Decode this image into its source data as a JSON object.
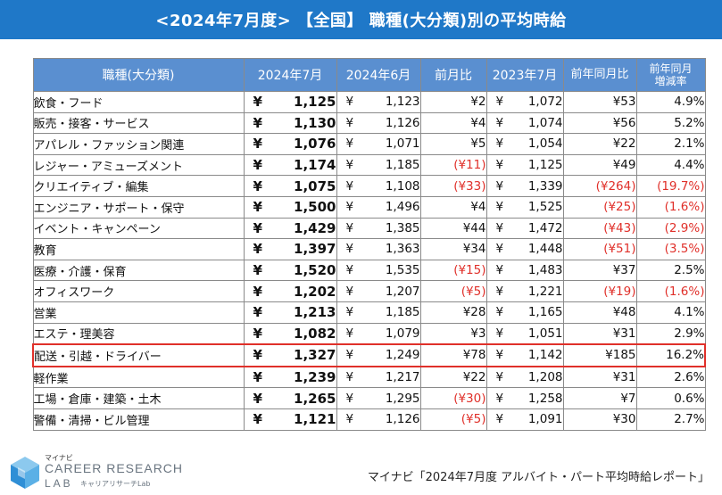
{
  "title": "<2024年7月度> 【全国】 職種(大分類)別の平均時給",
  "columns": [
    "職種(大分類)",
    "2024年7月",
    "2024年6月",
    "前月比",
    "2023年7月",
    "前年同月比",
    "前年同月増減率"
  ],
  "column_lines": {
    "rate_line1": "前年同月",
    "rate_line2": "増減率"
  },
  "currency_symbol": "¥",
  "rows": [
    {
      "name": "飲食・フード",
      "jul24": "1,125",
      "jun24": "1,123",
      "mom": "¥2",
      "mom_neg": false,
      "jul23": "1,072",
      "yoy": "¥53",
      "yoy_neg": false,
      "rate": "4.9%",
      "rate_neg": false
    },
    {
      "name": "販売・接客・サービス",
      "jul24": "1,130",
      "jun24": "1,126",
      "mom": "¥4",
      "mom_neg": false,
      "jul23": "1,074",
      "yoy": "¥56",
      "yoy_neg": false,
      "rate": "5.2%",
      "rate_neg": false
    },
    {
      "name": "アパレル・ファッション関連",
      "jul24": "1,076",
      "jun24": "1,071",
      "mom": "¥5",
      "mom_neg": false,
      "jul23": "1,054",
      "yoy": "¥22",
      "yoy_neg": false,
      "rate": "2.1%",
      "rate_neg": false
    },
    {
      "name": "レジャー・アミューズメント",
      "jul24": "1,174",
      "jun24": "1,185",
      "mom": "(¥11)",
      "mom_neg": true,
      "jul23": "1,125",
      "yoy": "¥49",
      "yoy_neg": false,
      "rate": "4.4%",
      "rate_neg": false
    },
    {
      "name": "クリエイティブ・編集",
      "jul24": "1,075",
      "jun24": "1,108",
      "mom": "(¥33)",
      "mom_neg": true,
      "jul23": "1,339",
      "yoy": "(¥264)",
      "yoy_neg": true,
      "rate": "(19.7%)",
      "rate_neg": true
    },
    {
      "name": "エンジニア・サポート・保守",
      "jul24": "1,500",
      "jun24": "1,496",
      "mom": "¥4",
      "mom_neg": false,
      "jul23": "1,525",
      "yoy": "(¥25)",
      "yoy_neg": true,
      "rate": "(1.6%)",
      "rate_neg": true
    },
    {
      "name": "イベント・キャンペーン",
      "jul24": "1,429",
      "jun24": "1,385",
      "mom": "¥44",
      "mom_neg": false,
      "jul23": "1,472",
      "yoy": "(¥43)",
      "yoy_neg": true,
      "rate": "(2.9%)",
      "rate_neg": true
    },
    {
      "name": "教育",
      "jul24": "1,397",
      "jun24": "1,363",
      "mom": "¥34",
      "mom_neg": false,
      "jul23": "1,448",
      "yoy": "(¥51)",
      "yoy_neg": true,
      "rate": "(3.5%)",
      "rate_neg": true
    },
    {
      "name": "医療・介護・保育",
      "jul24": "1,520",
      "jun24": "1,535",
      "mom": "(¥15)",
      "mom_neg": true,
      "jul23": "1,483",
      "yoy": "¥37",
      "yoy_neg": false,
      "rate": "2.5%",
      "rate_neg": false
    },
    {
      "name": "オフィスワーク",
      "jul24": "1,202",
      "jun24": "1,207",
      "mom": "(¥5)",
      "mom_neg": true,
      "jul23": "1,221",
      "yoy": "(¥19)",
      "yoy_neg": true,
      "rate": "(1.6%)",
      "rate_neg": true
    },
    {
      "name": "営業",
      "jul24": "1,213",
      "jun24": "1,185",
      "mom": "¥28",
      "mom_neg": false,
      "jul23": "1,165",
      "yoy": "¥48",
      "yoy_neg": false,
      "rate": "4.1%",
      "rate_neg": false
    },
    {
      "name": "エステ・理美容",
      "jul24": "1,082",
      "jun24": "1,079",
      "mom": "¥3",
      "mom_neg": false,
      "jul23": "1,051",
      "yoy": "¥31",
      "yoy_neg": false,
      "rate": "2.9%",
      "rate_neg": false
    },
    {
      "name": "配送・引越・ドライバー",
      "jul24": "1,327",
      "jun24": "1,249",
      "mom": "¥78",
      "mom_neg": false,
      "jul23": "1,142",
      "yoy": "¥185",
      "yoy_neg": false,
      "rate": "16.2%",
      "rate_neg": false,
      "highlight": true
    },
    {
      "name": "軽作業",
      "jul24": "1,239",
      "jun24": "1,217",
      "mom": "¥22",
      "mom_neg": false,
      "jul23": "1,208",
      "yoy": "¥31",
      "yoy_neg": false,
      "rate": "2.6%",
      "rate_neg": false
    },
    {
      "name": "工場・倉庫・建築・土木",
      "jul24": "1,265",
      "jun24": "1,295",
      "mom": "(¥30)",
      "mom_neg": true,
      "jul23": "1,258",
      "yoy": "¥7",
      "yoy_neg": false,
      "rate": "0.6%",
      "rate_neg": false
    },
    {
      "name": "警備・清掃・ビル管理",
      "jul24": "1,121",
      "jun24": "1,126",
      "mom": "(¥5)",
      "mom_neg": true,
      "jul23": "1,091",
      "yoy": "¥30",
      "yoy_neg": false,
      "rate": "2.7%",
      "rate_neg": false
    }
  ],
  "logo": {
    "small": "マイナビ",
    "main": "CAREER RESEARCH",
    "lab": "LAB",
    "sub": "キャリアリサーチLab"
  },
  "source": "マイナビ「2024年7月度 アルバイト・パート平均時給レポート」",
  "colors": {
    "title_bg": "#1f78c8",
    "header_bg": "#5a8fd0",
    "negative": "#e0302a",
    "highlight_border": "#e0302a"
  }
}
